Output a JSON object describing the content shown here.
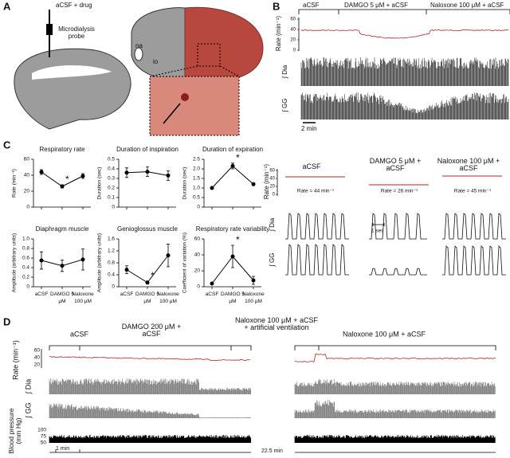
{
  "panel_a": {
    "label": "A",
    "probe": "aCSF + drug",
    "probe_name": "Microdialysis probe",
    "na": "na",
    "io": "io"
  },
  "panel_b": {
    "label": "B",
    "conditions": [
      "aCSF",
      "DAMGO 5 μM + aCSF",
      "Naloxone 100 μM + aCSF"
    ],
    "rate_label": "Rate (min⁻¹)",
    "rate_ticks": [
      "60",
      "40",
      "20",
      "0"
    ],
    "dia_label": "∫ Dia",
    "gg_label": "∫ GG",
    "scale": "2 min"
  },
  "panel_c": {
    "label": "C",
    "conditions": [
      "aCSF",
      "DAMGO 5 μM + aCSF",
      "Naloxone 100 μM + aCSF"
    ],
    "rate_label": "Rate (min⁻¹)",
    "rate_ticks": [
      "60",
      "40",
      "20",
      "0"
    ],
    "rates": [
      "Rate = 44 min⁻¹",
      "Rate = 26 min⁻¹",
      "Rate = 45 min⁻¹"
    ],
    "dia_label": "∫ Dia",
    "gg_label": "∫ GG",
    "scale": "1 sec"
  },
  "chart_data": [
    {
      "type": "line",
      "title": "Respiratory rate",
      "ylabel": "Rate (min⁻¹)",
      "values": [
        44,
        26,
        39
      ],
      "errors": [
        3,
        2,
        3
      ],
      "ylim": [
        0,
        60
      ],
      "yticks": [
        0,
        20,
        40,
        60
      ],
      "annotation": "*"
    },
    {
      "type": "line",
      "title": "Duration of inspiration",
      "ylabel": "Duration (sec)",
      "values": [
        0.36,
        0.37,
        0.33
      ],
      "errors": [
        0.05,
        0.05,
        0.05
      ],
      "ylim": [
        0,
        0.5
      ],
      "yticks": [
        0,
        0.1,
        0.2,
        0.3,
        0.4,
        0.5
      ]
    },
    {
      "type": "line",
      "title": "Duration of expiration",
      "ylabel": "Duration (sec)",
      "values": [
        1.0,
        2.15,
        1.2
      ],
      "errors": [
        0.05,
        0.15,
        0.07
      ],
      "ylim": [
        0,
        2.5
      ],
      "yticks": [
        0,
        0.5,
        {
          "value": 1,
          "label": "1.0"
        },
        1.5,
        {
          "value": 2,
          "label": "2.0"
        },
        2.5
      ],
      "annotation": "*"
    },
    {
      "type": "line",
      "title": "Diaphragm muscle",
      "ylabel": "Amplitude (arbitrary units)",
      "categories": [
        "aCSF",
        "DAMGO 5 μM",
        "Naloxone 100 μM"
      ],
      "values": [
        0.55,
        0.44,
        0.57
      ],
      "errors": [
        0.18,
        0.12,
        0.22
      ],
      "ylim": [
        0,
        1
      ],
      "yticks": [
        0,
        0.2,
        0.4,
        0.6,
        0.8,
        {
          "value": 1,
          "label": "1.0"
        }
      ]
    },
    {
      "type": "line",
      "title": "Genioglossus muscle",
      "ylabel": "Amplitude (arbitrary units)",
      "categories": [
        "aCSF",
        "DAMGO 5 μM",
        "Naloxone 100 μM"
      ],
      "values": [
        0.57,
        0.14,
        1.05
      ],
      "errors": [
        0.13,
        0.05,
        0.38
      ],
      "ylim": [
        0,
        1.6
      ],
      "yticks": [
        0,
        0.4,
        0.8,
        1.2,
        1.6
      ],
      "annotation": "*"
    },
    {
      "type": "line",
      "title": "Respiratory rate variability",
      "ylabel": "Coefficient of variation (%)",
      "categories": [
        "aCSF",
        "DAMGO 5 μM",
        "Naloxone 100 μM"
      ],
      "values": [
        4,
        38,
        8
      ],
      "errors": [
        1,
        14,
        5
      ],
      "ylim": [
        0,
        60
      ],
      "yticks": [
        0,
        20,
        40,
        60
      ],
      "annotation": "*"
    }
  ],
  "panel_d": {
    "label": "D",
    "conditions": [
      "aCSF",
      "DAMGO 200 μM + aCSF",
      "Naloxone 100 μM + aCSF + artificial ventilation",
      "Naloxone 100 μM + aCSF"
    ],
    "rate_label": "Rate (min⁻¹)",
    "rate_ticks": [
      "60",
      "40",
      "20"
    ],
    "dia_label": "∫ Dia",
    "gg_label": "∫ GG",
    "bp_label": "Blood pressure (mm Hg)",
    "bp_ticks": [
      "100",
      "75",
      "50"
    ],
    "scale": "1 min",
    "gap": "22.5 min"
  }
}
